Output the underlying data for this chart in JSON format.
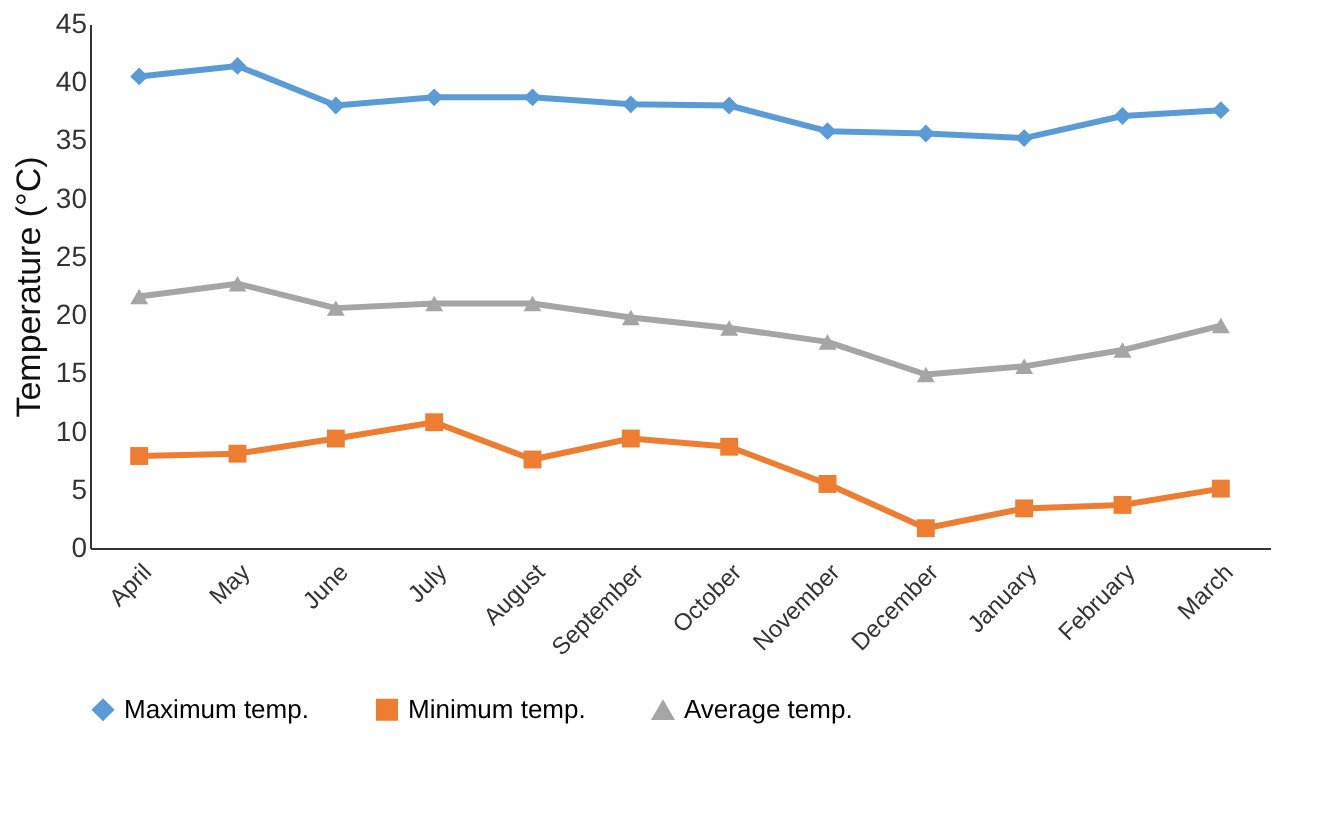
{
  "chart_data": {
    "type": "line",
    "ylabel": "Temperature (°C)",
    "categories": [
      "April",
      "May",
      "June",
      "July",
      "August",
      "September",
      "October",
      "November",
      "December",
      "January",
      "February",
      "March"
    ],
    "ylim": [
      0,
      45
    ],
    "yticks": [
      0,
      5,
      10,
      15,
      20,
      25,
      30,
      35,
      40,
      45
    ],
    "grid": false,
    "legend": "bottom",
    "line_style": "solid",
    "series": [
      {
        "name": "Maximum temp.",
        "color": "#5b9bd5",
        "marker": "diamond",
        "values": [
          40.5,
          41.4,
          38.0,
          38.7,
          38.7,
          38.1,
          38.0,
          35.8,
          35.6,
          35.2,
          37.1,
          37.6
        ]
      },
      {
        "name": "Minimum temp.",
        "color": "#ed7d31",
        "marker": "square",
        "values": [
          7.9,
          8.1,
          9.4,
          10.8,
          7.6,
          9.4,
          8.7,
          5.5,
          1.7,
          3.4,
          3.7,
          5.1
        ]
      },
      {
        "name": "Average temp.",
        "color": "#a5a5a5",
        "marker": "triangle",
        "values": [
          21.6,
          22.7,
          20.6,
          21.0,
          21.0,
          19.8,
          18.9,
          17.7,
          14.9,
          15.6,
          17.0,
          19.1
        ]
      }
    ]
  }
}
